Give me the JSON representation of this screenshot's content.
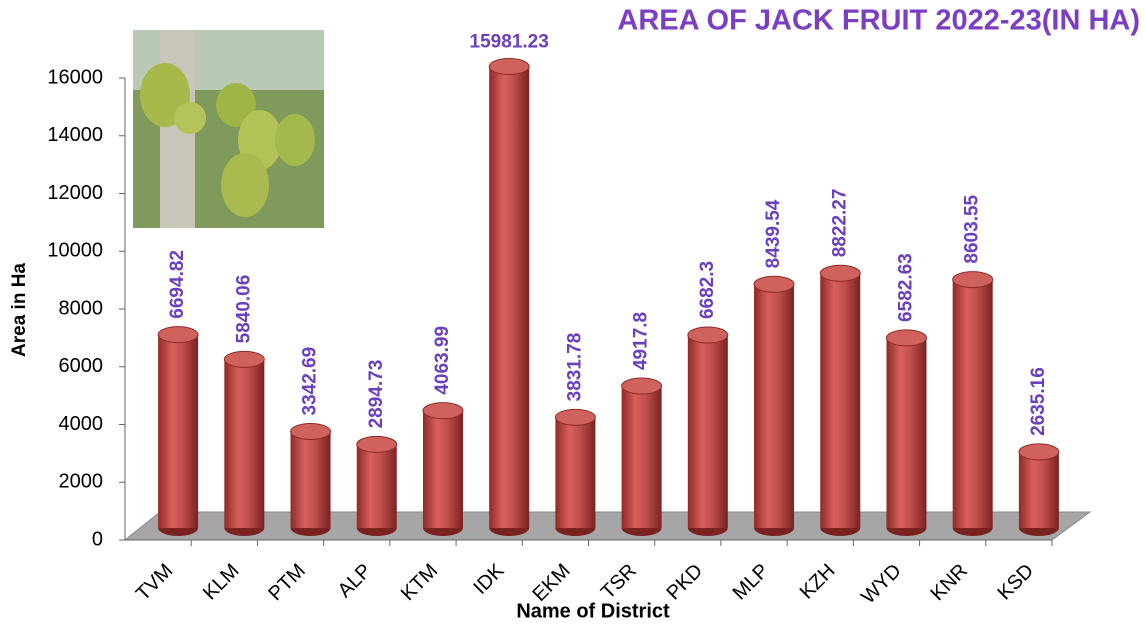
{
  "chart_data": {
    "type": "bar",
    "title": "AREA OF JACK FRUIT 2022-23(IN HA)",
    "x_label": "Name of District",
    "y_label": "Area in Ha",
    "categories": [
      "TVM",
      "KLM",
      "PTM",
      "ALP",
      "KTM",
      "IDK",
      "EKM",
      "TSR",
      "PKD",
      "MLP",
      "KZH",
      "WYD",
      "KNR",
      "KSD"
    ],
    "values": [
      6694.82,
      5840.06,
      3342.69,
      2894.73,
      4063.99,
      15981.23,
      3831.78,
      4917.8,
      6682.3,
      8439.54,
      8822.27,
      6582.63,
      8603.55,
      2635.16
    ],
    "color": "#c0504d",
    "ylim": [
      0,
      16000
    ],
    "yticks": [
      0,
      2000,
      4000,
      6000,
      8000,
      10000,
      12000,
      14000,
      16000
    ]
  }
}
